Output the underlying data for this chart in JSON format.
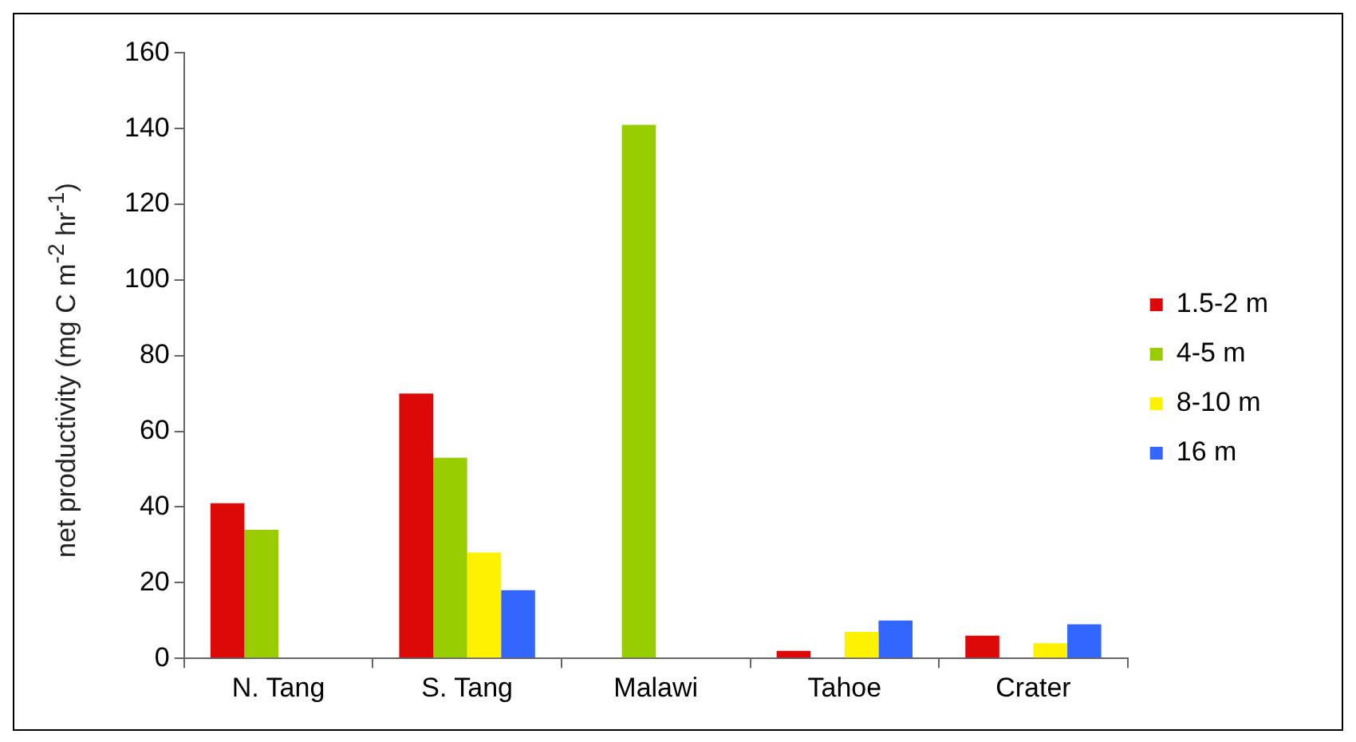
{
  "chart_data": {
    "type": "bar",
    "ylabel": "net productivity (mg C m$^{-2}$ hr$^{-1}$)",
    "categories": [
      "N. Tang",
      "S. Tang",
      "Malawi",
      "Tahoe",
      "Crater"
    ],
    "series": [
      {
        "name": "1.5-2 m",
        "color": "#dd0808",
        "values": [
          41,
          70,
          null,
          2,
          6
        ]
      },
      {
        "name": "4-5 m",
        "color": "#99cc00",
        "values": [
          34,
          53,
          141,
          null,
          null
        ]
      },
      {
        "name": "8-10 m",
        "color": "#fff200",
        "values": [
          null,
          28,
          null,
          7,
          4
        ]
      },
      {
        "name": "16 m",
        "color": "#3366ff",
        "values": [
          null,
          18,
          null,
          10,
          9
        ]
      }
    ],
    "ylim": [
      0,
      160
    ],
    "yticks": [
      0,
      20,
      40,
      60,
      80,
      100,
      120,
      140,
      160
    ],
    "grid": false,
    "legend": "right"
  }
}
